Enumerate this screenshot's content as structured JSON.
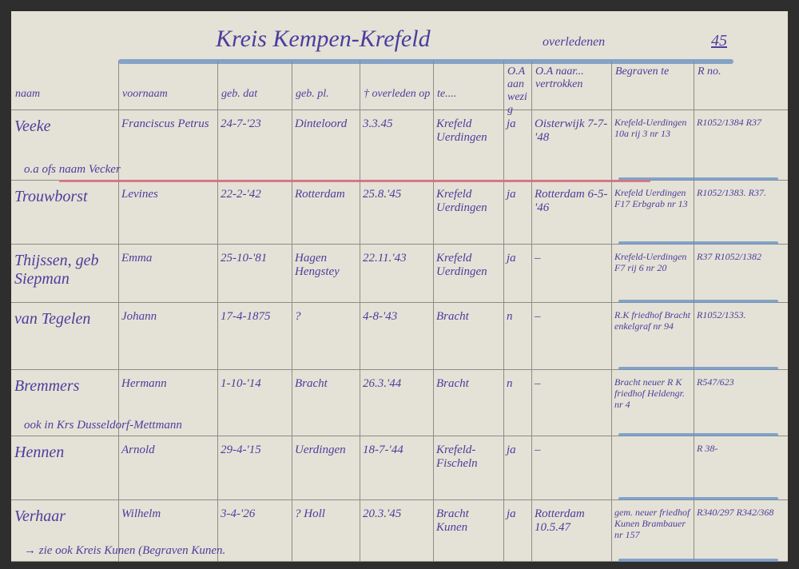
{
  "title": "Kreis Kempen-Krefeld",
  "subtitle": "overledenen",
  "sheet_number": "45",
  "ink_color": "#4b3d9e",
  "headers": [
    "naam",
    "voornaam",
    "geb. dat",
    "geb. pl.",
    "† overleden op",
    "te....",
    "O.A aanwezig",
    "O.A naar... vertrokken",
    "Begraven te",
    "R no."
  ],
  "rows": [
    {
      "naam": "Veeke",
      "voornaam": "Franciscus Petrus",
      "geb_dat": "24-7-'23",
      "geb_pl": "Dinteloord",
      "overleden": "3.3.45",
      "te": "Krefeld Uerdingen",
      "oa_aanwezig": "ja",
      "oa_naar": "Oisterwijk 7-7-'48",
      "begraven": "Krefeld-Uerdingen 10a rij 3 nr 13",
      "r_no": "R1052/1384 R37",
      "note": "o.a ofs naam Vecker"
    },
    {
      "naam": "Trouwborst",
      "voornaam": "Levines",
      "geb_dat": "22-2-'42",
      "geb_pl": "Rotterdam",
      "overleden": "25.8.'45",
      "te": "Krefeld Uerdingen",
      "oa_aanwezig": "ja",
      "oa_naar": "Rotterdam 6-5-'46",
      "begraven": "Krefeld Uerdingen F17 Erbgrab nr 13",
      "r_no": "R1052/1383. R37."
    },
    {
      "naam": "Thijssen, geb Siepman",
      "voornaam": "Emma",
      "geb_dat": "25-10-'81",
      "geb_pl": "Hagen Hengstey",
      "overleden": "22.11.'43",
      "te": "Krefeld Uerdingen",
      "oa_aanwezig": "ja",
      "oa_naar": "–",
      "begraven": "Krefeld-Uerdingen F7 rij 6 nr 20",
      "r_no": "R37 R1052/1382"
    },
    {
      "naam": "van Tegelen",
      "voornaam": "Johann",
      "geb_dat": "17-4-1875",
      "geb_pl": "?",
      "overleden": "4-8-'43",
      "te": "Bracht",
      "oa_aanwezig": "n",
      "oa_naar": "–",
      "begraven": "R.K friedhof Bracht enkelgraf nr 94",
      "r_no": "R1052/1353."
    },
    {
      "naam": "Bremmers",
      "voornaam": "Hermann",
      "geb_dat": "1-10-'14",
      "geb_pl": "Bracht",
      "overleden": "26.3.'44",
      "te": "Bracht",
      "oa_aanwezig": "n",
      "oa_naar": "–",
      "begraven": "Bracht neuer R K friedhof Heldengr. nr 4",
      "r_no": "R547/623",
      "note": "ook in Krs Dusseldorf-Mettmann"
    },
    {
      "naam": "Hennen",
      "voornaam": "Arnold",
      "geb_dat": "29-4-'15",
      "geb_pl": "Uerdingen",
      "overleden": "18-7-'44",
      "te": "Krefeld-Fischeln",
      "oa_aanwezig": "ja",
      "oa_naar": "–",
      "begraven": "",
      "r_no": "R 38-"
    },
    {
      "naam": "Verhaar",
      "voornaam": "Wilhelm",
      "geb_dat": "3-4-'26",
      "geb_pl": "? Holl",
      "overleden": "20.3.'45",
      "te": "Bracht Kunen",
      "oa_aanwezig": "ja",
      "oa_naar": "Rotterdam 10.5.47",
      "begraven": "gem. neuer friedhof Kunen Brambauer nr 157",
      "r_no": "R340/297 R342/368",
      "note": "→ zie ook Kreis Kunen (Begraven Kunen."
    }
  ]
}
